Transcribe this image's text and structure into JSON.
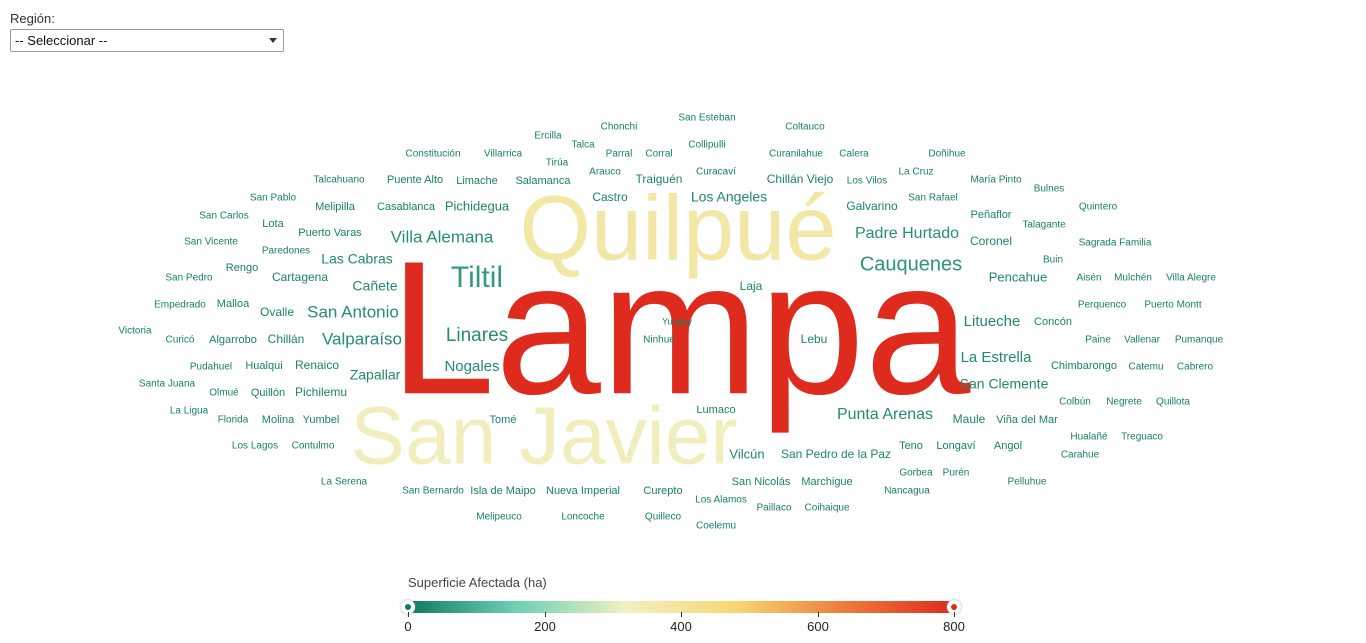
{
  "filter": {
    "label": "Región:",
    "selected": "-- Seleccionar --",
    "arrow_icon": "dropdown-arrow-icon"
  },
  "legend": {
    "title": "Superficie Afectada (ha)",
    "ticks": [
      "0",
      "200",
      "400",
      "600",
      "800"
    ],
    "min": 0,
    "max": 800,
    "colors": [
      "#0f7a5c",
      "#6fd1b5",
      "#f1f0c2",
      "#f7d774",
      "#ee7b3a",
      "#df2a1e"
    ]
  },
  "words": [
    {
      "text": "Lampa",
      "v": 800
    },
    {
      "text": "Quilpué",
      "v": 380
    },
    {
      "text": "San Javier",
      "v": 330
    },
    {
      "text": "Tiltil",
      "v": 60
    },
    {
      "text": "Cauquenes",
      "v": 50
    },
    {
      "text": "Villa Alemana",
      "v": 40
    },
    {
      "text": "Padre Hurtado",
      "v": 40
    },
    {
      "text": "San Antonio",
      "v": 35
    },
    {
      "text": "Linares",
      "v": 35
    },
    {
      "text": "Valparaíso",
      "v": 35
    },
    {
      "text": "Punta Arenas",
      "v": 35
    },
    {
      "text": "Litueche",
      "v": 30
    },
    {
      "text": "La Estrella",
      "v": 30
    },
    {
      "text": "Las Cabras",
      "v": 30
    },
    {
      "text": "Cañete",
      "v": 30
    },
    {
      "text": "Nogales",
      "v": 30
    },
    {
      "text": "Zapallar",
      "v": 28
    },
    {
      "text": "San Clemente",
      "v": 28
    },
    {
      "text": "Los Angeles",
      "v": 25
    },
    {
      "text": "San Pedro de la Paz",
      "v": 25
    },
    {
      "text": "Pencahue",
      "v": 25
    },
    {
      "text": "Coronel",
      "v": 22
    },
    {
      "text": "Lebu",
      "v": 22
    },
    {
      "text": "Laja",
      "v": 22
    },
    {
      "text": "Vilcún",
      "v": 22
    },
    {
      "text": "Castro",
      "v": 22
    },
    {
      "text": "Traiguén",
      "v": 22
    },
    {
      "text": "Galvarino",
      "v": 20
    },
    {
      "text": "Pichidegua",
      "v": 20
    },
    {
      "text": "Cartagena",
      "v": 20
    },
    {
      "text": "Ovalle",
      "v": 20
    },
    {
      "text": "Chillán",
      "v": 20
    },
    {
      "text": "Renaico",
      "v": 20
    },
    {
      "text": "Pichilemu",
      "v": 20
    },
    {
      "text": "Maule",
      "v": 20
    },
    {
      "text": "Lumaco",
      "v": 18
    },
    {
      "text": "Tomé",
      "v": 18
    },
    {
      "text": "Chillán Viejo",
      "v": 18
    },
    {
      "text": "Peñaflor",
      "v": 18
    },
    {
      "text": "Concón",
      "v": 18
    },
    {
      "text": "Marchigue",
      "v": 18
    },
    {
      "text": "San Nicolás",
      "v": 18
    },
    {
      "text": "Chimbarongo",
      "v": 18
    },
    {
      "text": "Viña del Mar",
      "v": 16
    },
    {
      "text": "Teno",
      "v": 16
    },
    {
      "text": "Angol",
      "v": 16
    },
    {
      "text": "Longaví",
      "v": 16
    },
    {
      "text": "Puerto Varas",
      "v": 16
    },
    {
      "text": "Casablanca",
      "v": 16
    },
    {
      "text": "Lota",
      "v": 16
    },
    {
      "text": "Malloa",
      "v": 16
    },
    {
      "text": "Molina",
      "v": 16
    },
    {
      "text": "Yumbel",
      "v": 16
    },
    {
      "text": "Quillón",
      "v": 16
    },
    {
      "text": "Hualqui",
      "v": 16
    },
    {
      "text": "Algarrobo",
      "v": 16
    },
    {
      "text": "Isla de Maipo",
      "v": 14
    },
    {
      "text": "Nueva Imperial",
      "v": 14
    },
    {
      "text": "Curepto",
      "v": 14
    },
    {
      "text": "Salamanca",
      "v": 14
    },
    {
      "text": "Limache",
      "v": 14
    },
    {
      "text": "Puente Alto",
      "v": 14
    },
    {
      "text": "Melipilla",
      "v": 14
    },
    {
      "text": "Rengo",
      "v": 14
    },
    {
      "text": "Paredones",
      "v": 14
    },
    {
      "text": "San Pablo",
      "v": 14
    },
    {
      "text": "San Carlos",
      "v": 14
    },
    {
      "text": "San Vicente",
      "v": 14
    },
    {
      "text": "San Pedro",
      "v": 14
    },
    {
      "text": "Empedrado",
      "v": 14
    },
    {
      "text": "Victoria",
      "v": 14
    },
    {
      "text": "Curicó",
      "v": 14
    },
    {
      "text": "Pudahuel",
      "v": 14
    },
    {
      "text": "Santa Juana",
      "v": 14
    },
    {
      "text": "Olmué",
      "v": 14
    },
    {
      "text": "La Ligua",
      "v": 14
    },
    {
      "text": "Florida",
      "v": 14
    },
    {
      "text": "Los Lagos",
      "v": 14
    },
    {
      "text": "Contulmo",
      "v": 14
    },
    {
      "text": "La Serena",
      "v": 14
    },
    {
      "text": "San Bernardo",
      "v": 14
    },
    {
      "text": "Melipeuco",
      "v": 14
    },
    {
      "text": "Loncoche",
      "v": 14
    },
    {
      "text": "Quilleco",
      "v": 14
    },
    {
      "text": "Coelemu",
      "v": 14
    },
    {
      "text": "Los Alamos",
      "v": 14
    },
    {
      "text": "Paillaco",
      "v": 14
    },
    {
      "text": "Coihaique",
      "v": 14
    },
    {
      "text": "Nancagua",
      "v": 14
    },
    {
      "text": "Gorbea",
      "v": 14
    },
    {
      "text": "Purén",
      "v": 14
    },
    {
      "text": "Pelluhue",
      "v": 14
    },
    {
      "text": "Hualañé",
      "v": 14
    },
    {
      "text": "Treguaco",
      "v": 14
    },
    {
      "text": "Carahue",
      "v": 14
    },
    {
      "text": "Colbún",
      "v": 14
    },
    {
      "text": "Negrete",
      "v": 14
    },
    {
      "text": "Quillota",
      "v": 14
    },
    {
      "text": "Catemu",
      "v": 14
    },
    {
      "text": "Cabrero",
      "v": 14
    },
    {
      "text": "Paine",
      "v": 14
    },
    {
      "text": "Vallenar",
      "v": 14
    },
    {
      "text": "Pumanque",
      "v": 14
    },
    {
      "text": "Perquenco",
      "v": 14
    },
    {
      "text": "Puerto Montt",
      "v": 14
    },
    {
      "text": "Aisén",
      "v": 14
    },
    {
      "text": "Mulchén",
      "v": 14
    },
    {
      "text": "Villa Alegre",
      "v": 14
    },
    {
      "text": "Buin",
      "v": 14
    },
    {
      "text": "Sagrada Familia",
      "v": 14
    },
    {
      "text": "Talagante",
      "v": 14
    },
    {
      "text": "Quintero",
      "v": 14
    },
    {
      "text": "Bulnes",
      "v": 14
    },
    {
      "text": "María Pinto",
      "v": 14
    },
    {
      "text": "San Rafael",
      "v": 14
    },
    {
      "text": "La Cruz",
      "v": 14
    },
    {
      "text": "Doñihue",
      "v": 14
    },
    {
      "text": "Los Vilos",
      "v": 14
    },
    {
      "text": "Calera",
      "v": 14
    },
    {
      "text": "Curanilahue",
      "v": 14
    },
    {
      "text": "Coltauco",
      "v": 14
    },
    {
      "text": "San Esteban",
      "v": 14
    },
    {
      "text": "Collipulli",
      "v": 14
    },
    {
      "text": "Curacaví",
      "v": 14
    },
    {
      "text": "Chonchi",
      "v": 14
    },
    {
      "text": "Ercilla",
      "v": 14
    },
    {
      "text": "Talca",
      "v": 14
    },
    {
      "text": "Parral",
      "v": 14
    },
    {
      "text": "Corral",
      "v": 14
    },
    {
      "text": "Tirúa",
      "v": 14
    },
    {
      "text": "Arauco",
      "v": 14
    },
    {
      "text": "Constitución",
      "v": 14
    },
    {
      "text": "Villarrica",
      "v": 14
    },
    {
      "text": "Talcahuano",
      "v": 14
    },
    {
      "text": "Ninhue",
      "v": 14
    },
    {
      "text": "Yungay",
      "v": 14
    }
  ]
}
